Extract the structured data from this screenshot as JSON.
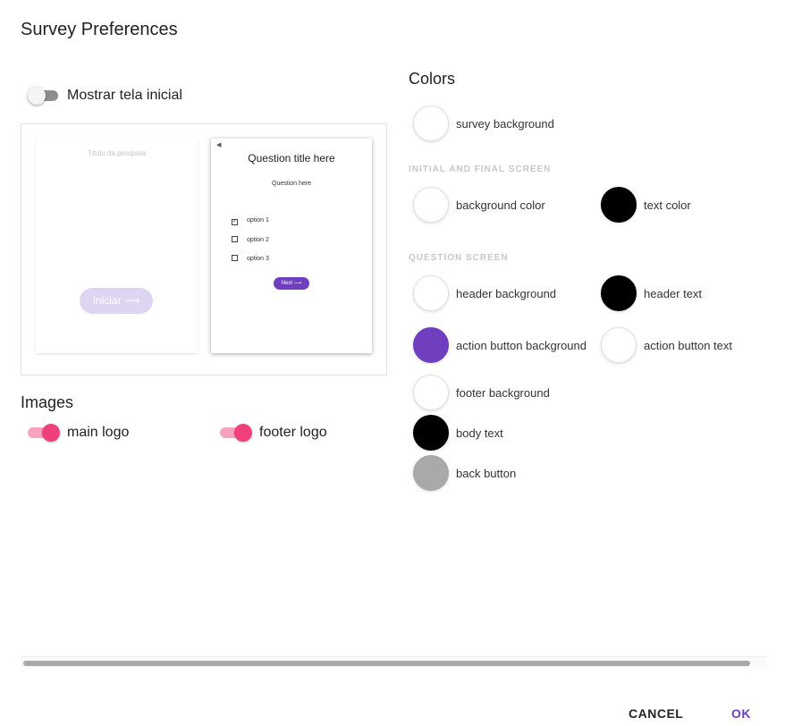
{
  "dialog": {
    "title": "Survey Preferences"
  },
  "welcome": {
    "label": "Mostrar tela inicial",
    "enabled": false
  },
  "preview": {
    "initial": {
      "survey_title": "Título da pesquisa",
      "start_button": "Iniciar ⟶"
    },
    "question": {
      "back_icon": "caret-left-icon",
      "title": "Question title here",
      "subtitle": "Question here",
      "options": [
        {
          "label": "option 1",
          "checked": true
        },
        {
          "label": "option 2",
          "checked": false
        },
        {
          "label": "option 3",
          "checked": false
        }
      ],
      "next_button": "Next ⟶"
    }
  },
  "images": {
    "heading": "Images",
    "main_logo": {
      "label": "main logo",
      "enabled": true
    },
    "footer_logo": {
      "label": "footer logo",
      "enabled": true
    }
  },
  "colors": {
    "heading": "Colors",
    "survey_background": {
      "label": "survey background",
      "color": "#ffffff"
    },
    "initial_final": {
      "heading": "INITIAL AND FINAL SCREEN",
      "background_color": {
        "label": "background color",
        "color": "#ffffff"
      },
      "text_color": {
        "label": "text color",
        "color": "#000000"
      }
    },
    "question_screen": {
      "heading": "QUESTION SCREEN",
      "header_background": {
        "label": "header background",
        "color": "#ffffff"
      },
      "header_text": {
        "label": "header text",
        "color": "#000000"
      },
      "action_button_background": {
        "label": "action button background",
        "color": "#6f3fc0"
      },
      "action_button_text": {
        "label": "action button text",
        "color": "#ffffff"
      },
      "footer_background": {
        "label": "footer background",
        "color": "#ffffff"
      },
      "body_text": {
        "label": "body text",
        "color": "#000000"
      },
      "back_button": {
        "label": "back button",
        "color": "#a9a9a9"
      }
    }
  },
  "actions": {
    "cancel": "CANCEL",
    "ok": "OK"
  }
}
